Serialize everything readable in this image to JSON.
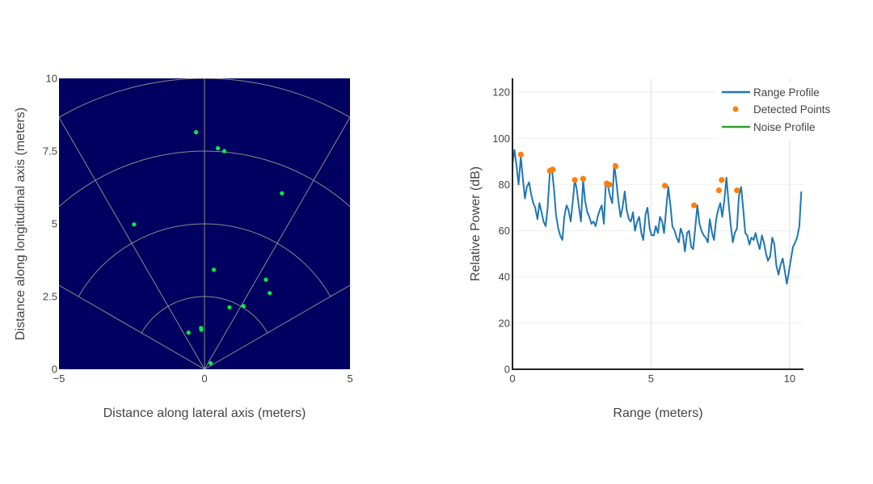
{
  "chart_data": [
    {
      "type": "scatter",
      "title": "",
      "xlabel": "Distance along lateral axis (meters)",
      "ylabel": "Distance along longitudinal axis (meters)",
      "xlim": [
        -5,
        5
      ],
      "ylim": [
        0,
        10
      ],
      "xticks": [
        -5,
        0,
        5
      ],
      "xtick_labels": [
        "−5",
        "0",
        "5"
      ],
      "yticks": [
        0,
        2.5,
        5,
        7.5,
        10
      ],
      "ytick_labels": [
        "0",
        "2.5",
        "5",
        "7.5",
        "10"
      ],
      "background_color": "#000060",
      "grid_color": "#8a8a8a",
      "point_color": "#00ee44",
      "grid": "polar range rings and angle spokes",
      "range_rings": [
        2.5,
        5,
        7.5,
        10
      ],
      "angle_spokes_deg": [
        -60,
        -30,
        0,
        30,
        60
      ],
      "series": [
        {
          "points": [
            {
              "x": -0.29,
              "y": 8.15
            },
            {
              "x": 0.46,
              "y": 7.6
            },
            {
              "x": 0.68,
              "y": 7.5
            },
            {
              "x": 2.66,
              "y": 6.05
            },
            {
              "x": -2.42,
              "y": 4.98
            },
            {
              "x": 0.32,
              "y": 3.42
            },
            {
              "x": 2.11,
              "y": 3.08
            },
            {
              "x": 2.24,
              "y": 2.62
            },
            {
              "x": 1.34,
              "y": 2.17
            },
            {
              "x": 0.86,
              "y": 2.13
            },
            {
              "x": -0.12,
              "y": 1.42
            },
            {
              "x": -0.11,
              "y": 1.36
            },
            {
              "x": -0.55,
              "y": 1.26
            },
            {
              "x": 0.21,
              "y": 0.21
            }
          ]
        }
      ]
    },
    {
      "type": "line",
      "title": "",
      "xlabel": "Range (meters)",
      "ylabel": "Relative Power (dB)",
      "xlim": [
        0,
        10.5
      ],
      "ylim": [
        0,
        126
      ],
      "xticks": [
        0,
        5,
        10
      ],
      "yticks": [
        0,
        20,
        40,
        60,
        80,
        100,
        120
      ],
      "grid": true,
      "legend": "top-right",
      "series": [
        {
          "name": "Range Profile",
          "color": "#1f77b4",
          "mode": "line",
          "x": [
            0.0,
            0.07,
            0.15,
            0.22,
            0.3,
            0.37,
            0.45,
            0.52,
            0.6,
            0.67,
            0.75,
            0.82,
            0.9,
            0.97,
            1.05,
            1.12,
            1.2,
            1.27,
            1.35,
            1.42,
            1.5,
            1.57,
            1.65,
            1.72,
            1.8,
            1.87,
            1.95,
            2.02,
            2.1,
            2.17,
            2.25,
            2.32,
            2.4,
            2.47,
            2.55,
            2.62,
            2.7,
            2.77,
            2.85,
            2.92,
            3.0,
            3.07,
            3.15,
            3.22,
            3.3,
            3.37,
            3.45,
            3.52,
            3.6,
            3.67,
            3.75,
            3.82,
            3.9,
            3.97,
            4.05,
            4.12,
            4.2,
            4.27,
            4.35,
            4.42,
            4.5,
            4.57,
            4.65,
            4.72,
            4.8,
            4.87,
            4.95,
            5.02,
            5.1,
            5.17,
            5.25,
            5.32,
            5.4,
            5.47,
            5.55,
            5.62,
            5.7,
            5.77,
            5.85,
            5.92,
            6.0,
            6.07,
            6.15,
            6.22,
            6.3,
            6.37,
            6.45,
            6.52,
            6.6,
            6.67,
            6.75,
            6.82,
            6.9,
            6.97,
            7.05,
            7.12,
            7.2,
            7.27,
            7.35,
            7.42,
            7.5,
            7.57,
            7.65,
            7.72,
            7.8,
            7.87,
            7.95,
            8.02,
            8.1,
            8.17,
            8.25,
            8.32,
            8.4,
            8.47,
            8.55,
            8.62,
            8.7,
            8.77,
            8.85,
            8.92,
            9.0,
            9.07,
            9.15,
            9.22,
            9.3,
            9.37,
            9.45,
            9.52,
            9.6,
            9.67,
            9.75,
            9.82,
            9.9,
            9.97,
            10.05,
            10.12,
            10.2,
            10.27,
            10.35,
            10.42
          ],
          "y": [
            89,
            95,
            88,
            80,
            92,
            83,
            74,
            79,
            81,
            76,
            72,
            70,
            65,
            72,
            68,
            64,
            62,
            70,
            86,
            87,
            78,
            67,
            61,
            58,
            56,
            66,
            71,
            69,
            64,
            72,
            82,
            78,
            70,
            64,
            82,
            73,
            68,
            66,
            63,
            64,
            62,
            66,
            69,
            71,
            63,
            81,
            79,
            75,
            72,
            89,
            81,
            73,
            66,
            70,
            77,
            69,
            65,
            64,
            68,
            60,
            64,
            66,
            59,
            56,
            67,
            70,
            61,
            58,
            58,
            62,
            59,
            66,
            64,
            59,
            70,
            79,
            71,
            62,
            60,
            57,
            55,
            61,
            58,
            51,
            59,
            60,
            53,
            52,
            62,
            71,
            63,
            60,
            58,
            57,
            55,
            65,
            59,
            56,
            65,
            69,
            72,
            66,
            74,
            83,
            72,
            63,
            55,
            59,
            61,
            75,
            79,
            70,
            59,
            58,
            54,
            57,
            56,
            59,
            55,
            52,
            58,
            55,
            50,
            47,
            49,
            57,
            54,
            45,
            41,
            45,
            48,
            43,
            37,
            42,
            48,
            53,
            55,
            57,
            62,
            77
          ]
        },
        {
          "name": "Detected Points",
          "color": "#ff7f0e",
          "mode": "markers",
          "x": [
            0.3,
            1.35,
            1.45,
            2.25,
            2.55,
            3.4,
            3.5,
            3.72,
            5.5,
            6.55,
            7.45,
            7.55,
            8.1
          ],
          "y": [
            93,
            86,
            86.5,
            82,
            82.5,
            80.5,
            80,
            88,
            79.5,
            71,
            77.5,
            82,
            77.5
          ]
        },
        {
          "name": "Noise Profile",
          "color": "#2ca02c",
          "mode": "line",
          "x": [],
          "y": []
        }
      ]
    }
  ]
}
